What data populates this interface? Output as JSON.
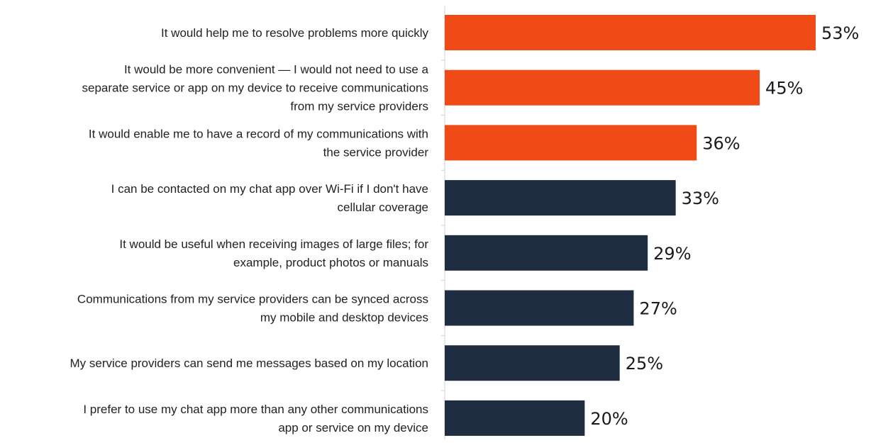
{
  "colors": {
    "highlight": "#f04b16",
    "base": "#1e2d3f",
    "axis": "#d0d0d0"
  },
  "chart_data": {
    "type": "bar",
    "orientation": "horizontal",
    "title": "",
    "xlabel": "",
    "ylabel": "",
    "xlim": [
      0,
      53
    ],
    "grid": false,
    "legend": "none",
    "value_suffix": "%",
    "categories": [
      [
        "It would help me to resolve problems more quickly"
      ],
      [
        "It would be more convenient — I would not need to use a",
        "separate service or app on my device to receive communications",
        "from my service providers"
      ],
      [
        "It would enable me to have a record of my communications with",
        "the service provider"
      ],
      [
        "I can be contacted on my chat app over Wi-Fi if I don't have",
        "cellular coverage"
      ],
      [
        "It would be useful when receiving images of large files; for",
        "example, product photos or manuals"
      ],
      [
        "Communications from my service providers can be synced across",
        "my mobile and desktop devices"
      ],
      [
        "My service providers can send me messages based on my location"
      ],
      [
        "I prefer to use my chat app more than any other communications",
        "app or service on my device"
      ]
    ],
    "values": [
      53,
      45,
      36,
      33,
      29,
      27,
      25,
      20
    ],
    "value_labels": [
      "53%",
      "45%",
      "36%",
      "33%",
      "29%",
      "27%",
      "25%",
      "20%"
    ],
    "highlighted": [
      true,
      true,
      true,
      false,
      false,
      false,
      false,
      false
    ]
  }
}
